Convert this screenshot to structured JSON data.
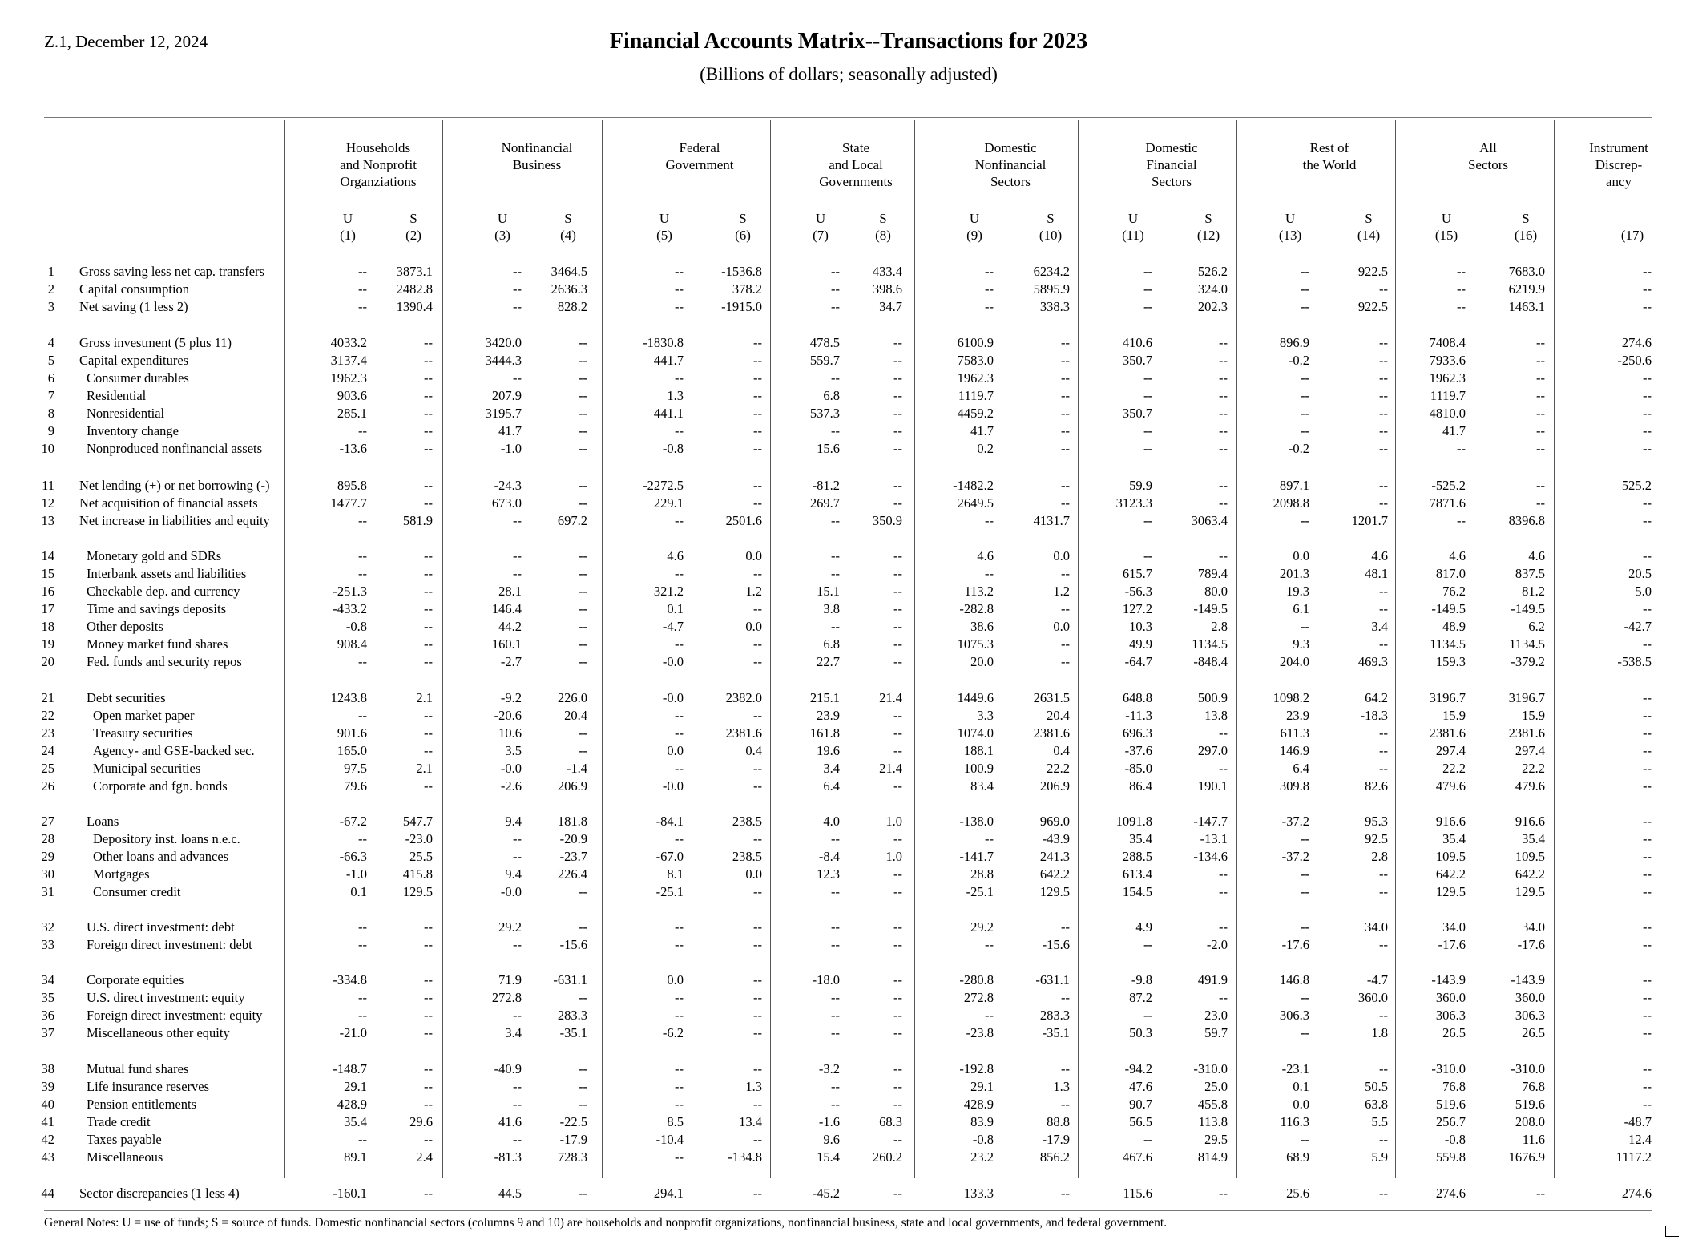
{
  "header": {
    "release": "Z.1, December 12, 2024",
    "title": "Financial Accounts Matrix--Transactions for 2023",
    "subtitle": "(Billions of dollars; seasonally adjusted)"
  },
  "column_groups": [
    {
      "label": [
        "Households",
        "and Nonprofit",
        "Organziations"
      ],
      "cols": [
        [
          "U",
          "(1)"
        ],
        [
          "S",
          "(2)"
        ]
      ]
    },
    {
      "label": [
        "Nonfinancial",
        "Business"
      ],
      "cols": [
        [
          "U",
          "(3)"
        ],
        [
          "S",
          "(4)"
        ]
      ]
    },
    {
      "label": [
        "Federal",
        "Government"
      ],
      "cols": [
        [
          "U",
          "(5)"
        ],
        [
          "S",
          "(6)"
        ]
      ]
    },
    {
      "label": [
        "State",
        "and Local",
        "Governments"
      ],
      "cols": [
        [
          "U",
          "(7)"
        ],
        [
          "S",
          "(8)"
        ]
      ]
    },
    {
      "label": [
        "Domestic",
        "Nonfinancial",
        "Sectors"
      ],
      "cols": [
        [
          "U",
          "(9)"
        ],
        [
          "S",
          "(10)"
        ]
      ]
    },
    {
      "label": [
        "Domestic",
        "Financial",
        "Sectors"
      ],
      "cols": [
        [
          "U",
          "(11)"
        ],
        [
          "S",
          "(12)"
        ]
      ]
    },
    {
      "label": [
        "Rest of",
        "the World"
      ],
      "cols": [
        [
          "U",
          "(13)"
        ],
        [
          "S",
          "(14)"
        ]
      ]
    },
    {
      "label": [
        "All",
        "Sectors"
      ],
      "cols": [
        [
          "U",
          "(15)"
        ],
        [
          "S",
          "(16)"
        ]
      ]
    },
    {
      "label": [
        "Instrument",
        "Discrep-",
        "ancy"
      ],
      "cols": [
        [
          "",
          "(17)"
        ]
      ]
    }
  ],
  "rows": [
    {
      "n": "1",
      "label": "Gross saving less net cap. transfers",
      "indent": 0,
      "v": [
        "--",
        "3873.1",
        "--",
        "3464.5",
        "--",
        "-1536.8",
        "--",
        "433.4",
        "--",
        "6234.2",
        "--",
        "526.2",
        "--",
        "922.5",
        "--",
        "7683.0",
        "--"
      ]
    },
    {
      "n": "2",
      "label": "Capital consumption",
      "indent": 0,
      "v": [
        "--",
        "2482.8",
        "--",
        "2636.3",
        "--",
        "378.2",
        "--",
        "398.6",
        "--",
        "5895.9",
        "--",
        "324.0",
        "--",
        "--",
        "--",
        "6219.9",
        "--"
      ]
    },
    {
      "n": "3",
      "label": "Net saving (1 less 2)",
      "indent": 0,
      "v": [
        "--",
        "1390.4",
        "--",
        "828.2",
        "--",
        "-1915.0",
        "--",
        "34.7",
        "--",
        "338.3",
        "--",
        "202.3",
        "--",
        "922.5",
        "--",
        "1463.1",
        "--"
      ]
    },
    {
      "n": "4",
      "label": "Gross investment (5 plus 11)",
      "indent": 0,
      "v": [
        "4033.2",
        "--",
        "3420.0",
        "--",
        "-1830.8",
        "--",
        "478.5",
        "--",
        "6100.9",
        "--",
        "410.6",
        "--",
        "896.9",
        "--",
        "7408.4",
        "--",
        "274.6"
      ]
    },
    {
      "n": "5",
      "label": "Capital expenditures",
      "indent": 0,
      "v": [
        "3137.4",
        "--",
        "3444.3",
        "--",
        "441.7",
        "--",
        "559.7",
        "--",
        "7583.0",
        "--",
        "350.7",
        "--",
        "-0.2",
        "--",
        "7933.6",
        "--",
        "-250.6"
      ]
    },
    {
      "n": "6",
      "label": "Consumer durables",
      "indent": 1,
      "v": [
        "1962.3",
        "--",
        "--",
        "--",
        "--",
        "--",
        "--",
        "--",
        "1962.3",
        "--",
        "--",
        "--",
        "--",
        "--",
        "1962.3",
        "--",
        "--"
      ]
    },
    {
      "n": "7",
      "label": "Residential",
      "indent": 1,
      "v": [
        "903.6",
        "--",
        "207.9",
        "--",
        "1.3",
        "--",
        "6.8",
        "--",
        "1119.7",
        "--",
        "--",
        "--",
        "--",
        "--",
        "1119.7",
        "--",
        "--"
      ]
    },
    {
      "n": "8",
      "label": "Nonresidential",
      "indent": 1,
      "v": [
        "285.1",
        "--",
        "3195.7",
        "--",
        "441.1",
        "--",
        "537.3",
        "--",
        "4459.2",
        "--",
        "350.7",
        "--",
        "--",
        "--",
        "4810.0",
        "--",
        "--"
      ]
    },
    {
      "n": "9",
      "label": "Inventory change",
      "indent": 1,
      "v": [
        "--",
        "--",
        "41.7",
        "--",
        "--",
        "--",
        "--",
        "--",
        "41.7",
        "--",
        "--",
        "--",
        "--",
        "--",
        "41.7",
        "--",
        "--"
      ]
    },
    {
      "n": "10",
      "label": "Nonproduced nonfinancial assets",
      "indent": 1,
      "v": [
        "-13.6",
        "--",
        "-1.0",
        "--",
        "-0.8",
        "--",
        "15.6",
        "--",
        "0.2",
        "--",
        "--",
        "--",
        "-0.2",
        "--",
        "--",
        "--",
        "--"
      ]
    },
    {
      "n": "11",
      "label": "Net lending (+) or net borrowing (-)",
      "indent": 0,
      "v": [
        "895.8",
        "--",
        "-24.3",
        "--",
        "-2272.5",
        "--",
        "-81.2",
        "--",
        "-1482.2",
        "--",
        "59.9",
        "--",
        "897.1",
        "--",
        "-525.2",
        "--",
        "525.2"
      ]
    },
    {
      "n": "12",
      "label": "Net acquisition of financial assets",
      "indent": 0,
      "v": [
        "1477.7",
        "--",
        "673.0",
        "--",
        "229.1",
        "--",
        "269.7",
        "--",
        "2649.5",
        "--",
        "3123.3",
        "--",
        "2098.8",
        "--",
        "7871.6",
        "--",
        "--"
      ]
    },
    {
      "n": "13",
      "label": "Net increase in liabilities and equity",
      "indent": 0,
      "v": [
        "--",
        "581.9",
        "--",
        "697.2",
        "--",
        "2501.6",
        "--",
        "350.9",
        "--",
        "4131.7",
        "--",
        "3063.4",
        "--",
        "1201.7",
        "--",
        "8396.8",
        "--"
      ]
    },
    {
      "n": "14",
      "label": "Monetary gold and SDRs",
      "indent": 1,
      "v": [
        "--",
        "--",
        "--",
        "--",
        "4.6",
        "0.0",
        "--",
        "--",
        "4.6",
        "0.0",
        "--",
        "--",
        "0.0",
        "4.6",
        "4.6",
        "4.6",
        "--"
      ]
    },
    {
      "n": "15",
      "label": "Interbank assets and liabilities",
      "indent": 1,
      "v": [
        "--",
        "--",
        "--",
        "--",
        "--",
        "--",
        "--",
        "--",
        "--",
        "--",
        "615.7",
        "789.4",
        "201.3",
        "48.1",
        "817.0",
        "837.5",
        "20.5"
      ]
    },
    {
      "n": "16",
      "label": "Checkable dep. and currency",
      "indent": 1,
      "v": [
        "-251.3",
        "--",
        "28.1",
        "--",
        "321.2",
        "1.2",
        "15.1",
        "--",
        "113.2",
        "1.2",
        "-56.3",
        "80.0",
        "19.3",
        "--",
        "76.2",
        "81.2",
        "5.0"
      ]
    },
    {
      "n": "17",
      "label": "Time and savings deposits",
      "indent": 1,
      "v": [
        "-433.2",
        "--",
        "146.4",
        "--",
        "0.1",
        "--",
        "3.8",
        "--",
        "-282.8",
        "--",
        "127.2",
        "-149.5",
        "6.1",
        "--",
        "-149.5",
        "-149.5",
        "--"
      ]
    },
    {
      "n": "18",
      "label": "Other deposits",
      "indent": 1,
      "v": [
        "-0.8",
        "--",
        "44.2",
        "--",
        "-4.7",
        "0.0",
        "--",
        "--",
        "38.6",
        "0.0",
        "10.3",
        "2.8",
        "--",
        "3.4",
        "48.9",
        "6.2",
        "-42.7"
      ]
    },
    {
      "n": "19",
      "label": "Money market fund shares",
      "indent": 1,
      "v": [
        "908.4",
        "--",
        "160.1",
        "--",
        "--",
        "--",
        "6.8",
        "--",
        "1075.3",
        "--",
        "49.9",
        "1134.5",
        "9.3",
        "--",
        "1134.5",
        "1134.5",
        "--"
      ]
    },
    {
      "n": "20",
      "label": "Fed. funds and security repos",
      "indent": 1,
      "v": [
        "--",
        "--",
        "-2.7",
        "--",
        "-0.0",
        "--",
        "22.7",
        "--",
        "20.0",
        "--",
        "-64.7",
        "-848.4",
        "204.0",
        "469.3",
        "159.3",
        "-379.2",
        "-538.5"
      ]
    },
    {
      "n": "21",
      "label": "Debt securities",
      "indent": 1,
      "v": [
        "1243.8",
        "2.1",
        "-9.2",
        "226.0",
        "-0.0",
        "2382.0",
        "215.1",
        "21.4",
        "1449.6",
        "2631.5",
        "648.8",
        "500.9",
        "1098.2",
        "64.2",
        "3196.7",
        "3196.7",
        "--"
      ]
    },
    {
      "n": "22",
      "label": "Open market paper",
      "indent": 2,
      "v": [
        "--",
        "--",
        "-20.6",
        "20.4",
        "--",
        "--",
        "23.9",
        "--",
        "3.3",
        "20.4",
        "-11.3",
        "13.8",
        "23.9",
        "-18.3",
        "15.9",
        "15.9",
        "--"
      ]
    },
    {
      "n": "23",
      "label": "Treasury securities",
      "indent": 2,
      "v": [
        "901.6",
        "--",
        "10.6",
        "--",
        "--",
        "2381.6",
        "161.8",
        "--",
        "1074.0",
        "2381.6",
        "696.3",
        "--",
        "611.3",
        "--",
        "2381.6",
        "2381.6",
        "--"
      ]
    },
    {
      "n": "24",
      "label": "Agency- and GSE-backed sec.",
      "indent": 2,
      "v": [
        "165.0",
        "--",
        "3.5",
        "--",
        "0.0",
        "0.4",
        "19.6",
        "--",
        "188.1",
        "0.4",
        "-37.6",
        "297.0",
        "146.9",
        "--",
        "297.4",
        "297.4",
        "--"
      ]
    },
    {
      "n": "25",
      "label": "Municipal securities",
      "indent": 2,
      "v": [
        "97.5",
        "2.1",
        "-0.0",
        "-1.4",
        "--",
        "--",
        "3.4",
        "21.4",
        "100.9",
        "22.2",
        "-85.0",
        "--",
        "6.4",
        "--",
        "22.2",
        "22.2",
        "--"
      ]
    },
    {
      "n": "26",
      "label": "Corporate and fgn. bonds",
      "indent": 2,
      "v": [
        "79.6",
        "--",
        "-2.6",
        "206.9",
        "-0.0",
        "--",
        "6.4",
        "--",
        "83.4",
        "206.9",
        "86.4",
        "190.1",
        "309.8",
        "82.6",
        "479.6",
        "479.6",
        "--"
      ]
    },
    {
      "n": "27",
      "label": "Loans",
      "indent": 1,
      "v": [
        "-67.2",
        "547.7",
        "9.4",
        "181.8",
        "-84.1",
        "238.5",
        "4.0",
        "1.0",
        "-138.0",
        "969.0",
        "1091.8",
        "-147.7",
        "-37.2",
        "95.3",
        "916.6",
        "916.6",
        "--"
      ]
    },
    {
      "n": "28",
      "label": "Depository inst. loans n.e.c.",
      "indent": 2,
      "v": [
        "--",
        "-23.0",
        "--",
        "-20.9",
        "--",
        "--",
        "--",
        "--",
        "--",
        "-43.9",
        "35.4",
        "-13.1",
        "--",
        "92.5",
        "35.4",
        "35.4",
        "--"
      ]
    },
    {
      "n": "29",
      "label": "Other loans and advances",
      "indent": 2,
      "v": [
        "-66.3",
        "25.5",
        "--",
        "-23.7",
        "-67.0",
        "238.5",
        "-8.4",
        "1.0",
        "-141.7",
        "241.3",
        "288.5",
        "-134.6",
        "-37.2",
        "2.8",
        "109.5",
        "109.5",
        "--"
      ]
    },
    {
      "n": "30",
      "label": "Mortgages",
      "indent": 2,
      "v": [
        "-1.0",
        "415.8",
        "9.4",
        "226.4",
        "8.1",
        "0.0",
        "12.3",
        "--",
        "28.8",
        "642.2",
        "613.4",
        "--",
        "--",
        "--",
        "642.2",
        "642.2",
        "--"
      ]
    },
    {
      "n": "31",
      "label": "Consumer credit",
      "indent": 2,
      "v": [
        "0.1",
        "129.5",
        "-0.0",
        "--",
        "-25.1",
        "--",
        "--",
        "--",
        "-25.1",
        "129.5",
        "154.5",
        "--",
        "--",
        "--",
        "129.5",
        "129.5",
        "--"
      ]
    },
    {
      "n": "32",
      "label": "U.S. direct investment: debt",
      "indent": 1,
      "v": [
        "--",
        "--",
        "29.2",
        "--",
        "--",
        "--",
        "--",
        "--",
        "29.2",
        "--",
        "4.9",
        "--",
        "--",
        "34.0",
        "34.0",
        "34.0",
        "--"
      ]
    },
    {
      "n": "33",
      "label": "Foreign direct investment: debt",
      "indent": 1,
      "v": [
        "--",
        "--",
        "--",
        "-15.6",
        "--",
        "--",
        "--",
        "--",
        "--",
        "-15.6",
        "--",
        "-2.0",
        "-17.6",
        "--",
        "-17.6",
        "-17.6",
        "--"
      ]
    },
    {
      "n": "34",
      "label": "Corporate equities",
      "indent": 1,
      "v": [
        "-334.8",
        "--",
        "71.9",
        "-631.1",
        "0.0",
        "--",
        "-18.0",
        "--",
        "-280.8",
        "-631.1",
        "-9.8",
        "491.9",
        "146.8",
        "-4.7",
        "-143.9",
        "-143.9",
        "--"
      ]
    },
    {
      "n": "35",
      "label": "U.S. direct investment: equity",
      "indent": 1,
      "v": [
        "--",
        "--",
        "272.8",
        "--",
        "--",
        "--",
        "--",
        "--",
        "272.8",
        "--",
        "87.2",
        "--",
        "--",
        "360.0",
        "360.0",
        "360.0",
        "--"
      ]
    },
    {
      "n": "36",
      "label": "Foreign direct investment: equity",
      "indent": 1,
      "v": [
        "--",
        "--",
        "--",
        "283.3",
        "--",
        "--",
        "--",
        "--",
        "--",
        "283.3",
        "--",
        "23.0",
        "306.3",
        "--",
        "306.3",
        "306.3",
        "--"
      ]
    },
    {
      "n": "37",
      "label": "Miscellaneous other equity",
      "indent": 1,
      "v": [
        "-21.0",
        "--",
        "3.4",
        "-35.1",
        "-6.2",
        "--",
        "--",
        "--",
        "-23.8",
        "-35.1",
        "50.3",
        "59.7",
        "--",
        "1.8",
        "26.5",
        "26.5",
        "--"
      ]
    },
    {
      "n": "38",
      "label": "Mutual fund shares",
      "indent": 1,
      "v": [
        "-148.7",
        "--",
        "-40.9",
        "--",
        "--",
        "--",
        "-3.2",
        "--",
        "-192.8",
        "--",
        "-94.2",
        "-310.0",
        "-23.1",
        "--",
        "-310.0",
        "-310.0",
        "--"
      ]
    },
    {
      "n": "39",
      "label": "Life insurance reserves",
      "indent": 1,
      "v": [
        "29.1",
        "--",
        "--",
        "--",
        "--",
        "1.3",
        "--",
        "--",
        "29.1",
        "1.3",
        "47.6",
        "25.0",
        "0.1",
        "50.5",
        "76.8",
        "76.8",
        "--"
      ]
    },
    {
      "n": "40",
      "label": "Pension entitlements",
      "indent": 1,
      "v": [
        "428.9",
        "--",
        "--",
        "--",
        "--",
        "--",
        "--",
        "--",
        "428.9",
        "--",
        "90.7",
        "455.8",
        "0.0",
        "63.8",
        "519.6",
        "519.6",
        "--"
      ]
    },
    {
      "n": "41",
      "label": "Trade credit",
      "indent": 1,
      "v": [
        "35.4",
        "29.6",
        "41.6",
        "-22.5",
        "8.5",
        "13.4",
        "-1.6",
        "68.3",
        "83.9",
        "88.8",
        "56.5",
        "113.8",
        "116.3",
        "5.5",
        "256.7",
        "208.0",
        "-48.7"
      ]
    },
    {
      "n": "42",
      "label": "Taxes payable",
      "indent": 1,
      "v": [
        "--",
        "--",
        "--",
        "-17.9",
        "-10.4",
        "--",
        "9.6",
        "--",
        "-0.8",
        "-17.9",
        "--",
        "29.5",
        "--",
        "--",
        "-0.8",
        "11.6",
        "12.4"
      ]
    },
    {
      "n": "43",
      "label": "Miscellaneous",
      "indent": 1,
      "v": [
        "89.1",
        "2.4",
        "-81.3",
        "728.3",
        "--",
        "-134.8",
        "15.4",
        "260.2",
        "23.2",
        "856.2",
        "467.6",
        "814.9",
        "68.9",
        "5.9",
        "559.8",
        "1676.9",
        "1117.2"
      ]
    },
    {
      "n": "44",
      "label": "Sector discrepancies (1 less 4)",
      "indent": 0,
      "v": [
        "-160.1",
        "--",
        "44.5",
        "--",
        "294.1",
        "--",
        "-45.2",
        "--",
        "133.3",
        "--",
        "115.6",
        "--",
        "25.6",
        "--",
        "274.6",
        "--",
        "274.6"
      ]
    }
  ],
  "notes": "General Notes: U = use of funds; S = source of funds. Domestic nonfinancial sectors (columns 9 and 10) are households and nonprofit organizations, nonfinancial business, state and local governments, and federal government."
}
